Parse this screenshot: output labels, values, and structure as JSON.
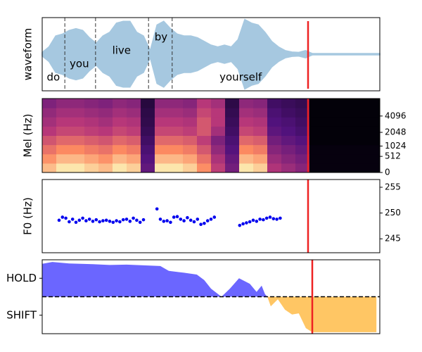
{
  "chart_data": [
    {
      "type": "waveform",
      "ylabel": "waveform",
      "xlim": [
        0,
        100
      ],
      "ylim": [
        -1,
        1
      ],
      "color": "#a6c8e0",
      "x": [
        0,
        2,
        4,
        6,
        8,
        10,
        12,
        14,
        16,
        18,
        20,
        22,
        24,
        26,
        28,
        30,
        32,
        34,
        36,
        38,
        40,
        42,
        44,
        46,
        48,
        50,
        52,
        54,
        56,
        58,
        60,
        62,
        64,
        66,
        68,
        70,
        72,
        74,
        76,
        78,
        80,
        82,
        84,
        86,
        88,
        90,
        92,
        94,
        96,
        98,
        100
      ],
      "values": [
        0.05,
        0.2,
        0.5,
        0.55,
        0.65,
        0.7,
        0.65,
        0.45,
        0.3,
        0.5,
        0.6,
        0.85,
        0.9,
        0.9,
        0.6,
        0.5,
        0.1,
        0.8,
        0.9,
        0.7,
        0.55,
        0.5,
        0.5,
        0.45,
        0.35,
        0.25,
        0.2,
        0.25,
        0.2,
        0.4,
        0.95,
        0.85,
        0.8,
        0.6,
        0.35,
        0.2,
        0.1,
        0.06,
        0.05,
        0.1,
        0.02,
        0.02,
        0.02,
        0.02,
        0.02,
        0.02,
        0.02,
        0.02,
        0.02,
        0.02,
        0.02
      ],
      "boundaries": [
        6.7,
        15.8,
        31.5,
        38.5
      ],
      "words": [
        {
          "text": "do",
          "x": 3.3,
          "y": -0.63
        },
        {
          "text": "you",
          "x": 11,
          "y": -0.27
        },
        {
          "text": "live",
          "x": 23.5,
          "y": 0.1
        },
        {
          "text": "by",
          "x": 35.2,
          "y": 0.46
        },
        {
          "text": "yourself",
          "x": 58.8,
          "y": -0.63
        }
      ],
      "cursor": {
        "x": 78.75,
        "color": "#ee2222"
      }
    },
    {
      "type": "heatmap",
      "ylabel": "Mel (Hz)",
      "xlim": [
        0,
        100
      ],
      "ylim": [
        0,
        8000
      ],
      "yscale": "mel",
      "yticks": [
        0,
        512,
        1024,
        2048,
        4096
      ],
      "z": [
        [
          0.86,
          0.95,
          0.95,
          0.9,
          0.86,
          0.95,
          0.9,
          0.29,
          0.95,
          0.95,
          0.9,
          0.76,
          0.52,
          0.33,
          0.95,
          0.9,
          0.48,
          0.43,
          0.38,
          0.02,
          0.02,
          0.02,
          0.02,
          0.02
        ],
        [
          0.77,
          0.85,
          0.85,
          0.81,
          0.77,
          0.85,
          0.81,
          0.26,
          0.85,
          0.85,
          0.81,
          0.68,
          0.47,
          0.3,
          0.85,
          0.81,
          0.43,
          0.38,
          0.34,
          0.02,
          0.02,
          0.02,
          0.02,
          0.02
        ],
        [
          0.68,
          0.75,
          0.75,
          0.71,
          0.68,
          0.75,
          0.71,
          0.23,
          0.75,
          0.75,
          0.71,
          0.6,
          0.41,
          0.26,
          0.75,
          0.71,
          0.38,
          0.34,
          0.3,
          0.02,
          0.02,
          0.02,
          0.02,
          0.02
        ],
        [
          0.59,
          0.65,
          0.65,
          0.62,
          0.59,
          0.65,
          0.62,
          0.2,
          0.65,
          0.65,
          0.62,
          0.52,
          0.36,
          0.23,
          0.65,
          0.62,
          0.33,
          0.29,
          0.26,
          0.01,
          0.01,
          0.01,
          0.01,
          0.01
        ],
        [
          0.5,
          0.55,
          0.55,
          0.52,
          0.5,
          0.55,
          0.52,
          0.17,
          0.55,
          0.55,
          0.52,
          0.6,
          0.45,
          0.2,
          0.55,
          0.52,
          0.28,
          0.25,
          0.22,
          0.01,
          0.01,
          0.01,
          0.01,
          0.01
        ],
        [
          0.45,
          0.5,
          0.5,
          0.48,
          0.45,
          0.5,
          0.48,
          0.15,
          0.5,
          0.5,
          0.48,
          0.6,
          0.5,
          0.18,
          0.5,
          0.48,
          0.25,
          0.23,
          0.2,
          0.01,
          0.01,
          0.01,
          0.01,
          0.01
        ],
        [
          0.41,
          0.45,
          0.45,
          0.43,
          0.41,
          0.45,
          0.43,
          0.14,
          0.45,
          0.45,
          0.43,
          0.55,
          0.5,
          0.16,
          0.45,
          0.43,
          0.23,
          0.2,
          0.18,
          0.01,
          0.01,
          0.01,
          0.01,
          0.01
        ],
        [
          0.36,
          0.4,
          0.4,
          0.38,
          0.36,
          0.4,
          0.38,
          0.12,
          0.4,
          0.4,
          0.38,
          0.5,
          0.45,
          0.14,
          0.4,
          0.38,
          0.2,
          0.18,
          0.16,
          0.01,
          0.01,
          0.01,
          0.01,
          0.01
        ]
      ],
      "cursor": {
        "x": 78.75,
        "color": "#ee2222"
      }
    },
    {
      "type": "scatter",
      "ylabel": "F0 (Hz)",
      "xlim": [
        0,
        100
      ],
      "ylim": [
        242.3,
        256.5
      ],
      "yticks": [
        245,
        250,
        255
      ],
      "series": [
        {
          "color": "#0000ee",
          "x": [
            5,
            6,
            7,
            8,
            9,
            10,
            11,
            12,
            13,
            14,
            15,
            16,
            17,
            18,
            19,
            20,
            21,
            22,
            23,
            24,
            25,
            26,
            27,
            28,
            29,
            30,
            34,
            35,
            36,
            37,
            38,
            39,
            40,
            41,
            42,
            43,
            44,
            45,
            46,
            47,
            48,
            49,
            50,
            51,
            58.5,
            59.5,
            60.5,
            61.5,
            62.5,
            63.5,
            64.5,
            65.5,
            66.5,
            67.5,
            68.5,
            69.5,
            70.5
          ],
          "values": [
            248.6,
            249.2,
            249,
            248.3,
            248.8,
            248.2,
            248.6,
            249,
            248.5,
            248.8,
            248.4,
            248.7,
            248.3,
            248.5,
            248.6,
            248.4,
            248.2,
            248.5,
            248.3,
            248.7,
            248.8,
            248.4,
            249,
            248.6,
            248.2,
            248.7,
            250.8,
            248.8,
            248.4,
            248.5,
            248.2,
            249.2,
            249.3,
            248.8,
            248.5,
            249.1,
            248.6,
            248.3,
            248.8,
            247.8,
            248,
            248.5,
            248.8,
            249.2,
            247.6,
            247.9,
            248.1,
            248.3,
            248.6,
            248.4,
            248.8,
            248.7,
            249,
            249.2,
            248.9,
            248.8,
            249
          ]
        }
      ],
      "cursor": {
        "x": 78.75,
        "color": "#ee2222"
      }
    },
    {
      "type": "area",
      "xlim": [
        0,
        100
      ],
      "ylim": [
        -1,
        1
      ],
      "yticks": [
        {
          "value": 0.5,
          "label": "HOLD"
        },
        {
          "value": -0.5,
          "label": "SHIFT"
        }
      ],
      "hline": 0,
      "pos_color": "#6b66ff",
      "neg_color": "#ffc664",
      "x": [
        0,
        3,
        8,
        15,
        20,
        25,
        30,
        35,
        37.5,
        42,
        45.8,
        48,
        50,
        53.1,
        55.6,
        58.3,
        61.5,
        63.5,
        65,
        66,
        66.7,
        67.7,
        69.8,
        71.9,
        74,
        76,
        78.1,
        80,
        90,
        99
      ],
      "values": [
        0.89,
        0.94,
        0.9,
        0.88,
        0.86,
        0.87,
        0.85,
        0.83,
        0.7,
        0.65,
        0.6,
        0.45,
        0.22,
        0,
        0.22,
        0.5,
        0.35,
        0.13,
        0.3,
        0.07,
        0,
        -0.26,
        -0.07,
        -0.35,
        -0.48,
        -0.45,
        -0.85,
        -0.96,
        -0.96,
        -0.96
      ],
      "cursor": {
        "x": 80,
        "color": "#ee2222"
      }
    }
  ]
}
